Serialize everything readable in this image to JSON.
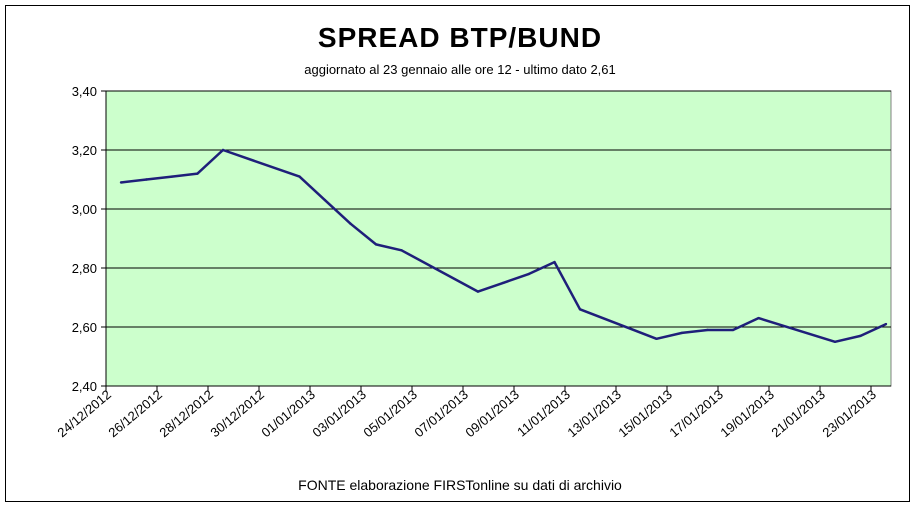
{
  "chart_data": {
    "type": "line",
    "title": "SPREAD  BTP/BUND",
    "subtitle": "aggiornato al 23 gennaio alle ore 12 - ultimo dato 2,61",
    "source": "FONTE elaborazione FIRSTonline su dati di archivio",
    "xlabel": "",
    "ylabel": "",
    "ylim": [
      2.4,
      3.4
    ],
    "yticks": [
      2.4,
      2.6,
      2.8,
      3.0,
      3.2,
      3.4
    ],
    "ytick_labels": [
      "2,40",
      "2,60",
      "2,80",
      "3,00",
      "3,20",
      "3,40"
    ],
    "xtick_labels": [
      "24/12/2012",
      "26/12/2012",
      "28/12/2012",
      "30/12/2012",
      "01/01/2013",
      "03/01/2013",
      "05/01/2013",
      "07/01/2013",
      "09/01/2013",
      "11/01/2013",
      "13/01/2013",
      "15/01/2013",
      "17/01/2013",
      "19/01/2013",
      "21/01/2013",
      "23/01/2013"
    ],
    "x_range": [
      "24/12/2012",
      "23/01/2013"
    ],
    "grid": true,
    "plot_background": "#ccffcc",
    "line_color": "#1f1f7a",
    "series": [
      {
        "x": [
          "24/12/2012",
          "25/12/2012",
          "26/12/2012",
          "27/12/2012",
          "28/12/2012",
          "31/12/2012",
          "01/01/2013",
          "02/01/2013",
          "03/01/2013",
          "04/01/2013",
          "07/01/2013",
          "08/01/2013",
          "09/01/2013",
          "10/01/2013",
          "11/01/2013",
          "14/01/2013",
          "15/01/2013",
          "16/01/2013",
          "17/01/2013",
          "18/01/2013",
          "21/01/2013",
          "22/01/2013",
          "23/01/2013"
        ],
        "values": [
          3.09,
          3.1,
          3.11,
          3.12,
          3.2,
          3.11,
          3.03,
          2.95,
          2.88,
          2.86,
          2.72,
          2.75,
          2.78,
          2.82,
          2.66,
          2.56,
          2.58,
          2.59,
          2.59,
          2.63,
          2.55,
          2.57,
          2.61
        ]
      }
    ]
  }
}
